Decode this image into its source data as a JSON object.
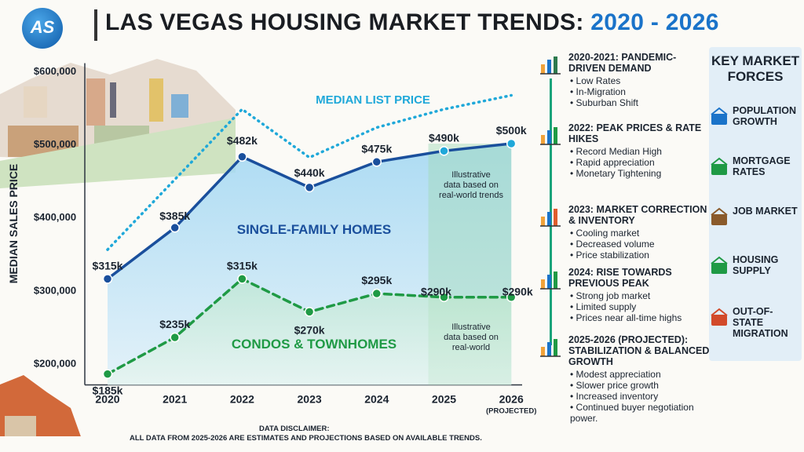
{
  "header": {
    "title_main": "LAS VEGAS HOUSING MARKET TRENDS: ",
    "title_years": "2020 - 2026",
    "logo_text": "AS"
  },
  "chart_data": {
    "type": "line",
    "x": [
      "2020",
      "2021",
      "2022",
      "2023",
      "2024",
      "2025",
      "2026"
    ],
    "x_sublabels": [
      "",
      "",
      "",
      "",
      "",
      "",
      "(PROJECTED)"
    ],
    "ylabel": "MEDIAN SALES PRICE",
    "ylim": [
      170000,
      610000
    ],
    "yticks": [
      200000,
      300000,
      400000,
      500000,
      600000
    ],
    "ytick_labels": [
      "$200,000",
      "$300,000",
      "$400,000",
      "$500,000",
      "$600,000"
    ],
    "series": [
      {
        "name": "MEDIAN LIST PRICE",
        "style": "dotted",
        "color": "#1fa8d9",
        "values": [
          355000,
          null,
          547000,
          481000,
          522000,
          547000,
          566000
        ],
        "labels": [
          "",
          "",
          "",
          "",
          "",
          "",
          ""
        ]
      },
      {
        "name": "SINGLE-FAMILY HOMES",
        "style": "solid",
        "color": "#1a4f9c",
        "values": [
          315000,
          385000,
          482000,
          440000,
          475000,
          490000,
          500000
        ],
        "labels": [
          "$315k",
          "$385k",
          "$482k",
          "$440k",
          "$475k",
          "$490k",
          "$500k"
        ]
      },
      {
        "name": "CONDOS & TOWNHOMES",
        "style": "dashed",
        "color": "#1f9a45",
        "values": [
          185000,
          235000,
          315000,
          270000,
          295000,
          290000,
          290000
        ],
        "labels": [
          "$185k",
          "$235k",
          "$315k",
          "$270k",
          "$295k",
          "$290k",
          "$290k"
        ]
      }
    ],
    "annotations": [
      "Illustrative\ndata based on\nreal-world trends",
      "Illustrative\ndata based on\nreal-world"
    ],
    "projection_shaded_from": "2025",
    "grid": false
  },
  "timeline": [
    {
      "head": "2020-2021: PANDEMIC-DRIVEN DEMAND",
      "icon": "people-gears-icon",
      "bullets": [
        "Low Rates",
        "In-Migration",
        "Suburban Shift"
      ]
    },
    {
      "head": "2022: PEAK PRICES & RATE HIKES",
      "icon": "rising-bar-chart-icon",
      "bullets": [
        "Record Median High",
        "Rapid appreciation",
        "Monetary Tightening"
      ]
    },
    {
      "head": "2023: MARKET CORRECTION & INVENTORY",
      "icon": "falling-bar-chart-icon",
      "bullets": [
        "Cooling market",
        "Decreased volume",
        "Price stabilization"
      ]
    },
    {
      "head": "2024: RISE TOWARDS PREVIOUS PEAK",
      "icon": "rising-bar-chart-icon",
      "bullets": [
        "Strong job market",
        "Limited supply",
        "Prices near all-time highs"
      ]
    },
    {
      "head": "2025-2026 (PROJECTED): STABILIZATION & BALANCED GROWTH",
      "icon": "growth-chart-icon",
      "bullets": [
        "Modest appreciation",
        "Slower price growth",
        "Increased inventory",
        "Continued buyer negotiation power."
      ]
    }
  ],
  "forces": {
    "title": "KEY MARKET FORCES",
    "items": [
      {
        "label": "POPULATION GROWTH",
        "icon": "people-icon"
      },
      {
        "label": "MORTGAGE RATES",
        "icon": "house-dollar-icon"
      },
      {
        "label": "JOB MARKET",
        "icon": "briefcase-icon"
      },
      {
        "label": "HOUSING SUPPLY",
        "icon": "house-icon"
      },
      {
        "label": "OUT-OF-STATE MIGRATION",
        "icon": "nevada-pin-icon"
      }
    ]
  },
  "disclaimer": {
    "line1": "DATA DISCLAIMER:",
    "line2": "ALL DATA FROM 2025-2026 ARE ESTIMATES AND PROJECTIONS BASED ON AVAILABLE TRENDS."
  },
  "colors": {
    "sfh": "#1a4f9c",
    "condo": "#1f9a45",
    "list": "#1fa8d9",
    "accent": "#1a73c9"
  }
}
